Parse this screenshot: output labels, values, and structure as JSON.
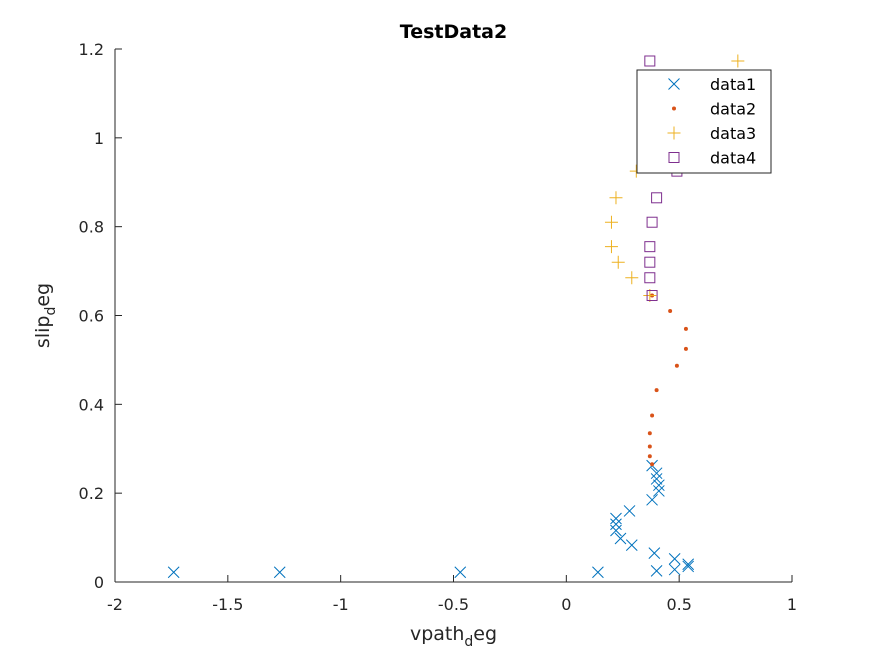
{
  "chart_data": {
    "type": "scatter",
    "title": "TestData2",
    "xlabel": {
      "main": "vpath",
      "sub": "d",
      "rest": "eg"
    },
    "ylabel": {
      "main": "slip",
      "sub": "d",
      "rest": "eg"
    },
    "xlim": [
      -2,
      1
    ],
    "ylim": [
      0,
      1.2
    ],
    "xticks": [
      -2,
      -1.5,
      -1,
      -0.5,
      0,
      0.5,
      1
    ],
    "yticks": [
      0,
      0.2,
      0.4,
      0.6,
      0.8,
      1,
      1.2
    ],
    "xtick_labels": [
      "-2",
      "-1.5",
      "-1",
      "-0.5",
      "0",
      "0.5",
      "1"
    ],
    "ytick_labels": [
      "0",
      "0.2",
      "0.4",
      "0.6",
      "0.8",
      "1",
      "1.2"
    ],
    "grid": false,
    "legend_position": "top-right",
    "series": [
      {
        "name": "data1",
        "marker": "x",
        "color": "#0072BD",
        "points": [
          [
            -1.74,
            0.022
          ],
          [
            -1.27,
            0.022
          ],
          [
            -0.47,
            0.022
          ],
          [
            0.14,
            0.022
          ],
          [
            0.4,
            0.025
          ],
          [
            0.48,
            0.028
          ],
          [
            0.54,
            0.035
          ],
          [
            0.54,
            0.04
          ],
          [
            0.48,
            0.052
          ],
          [
            0.39,
            0.065
          ],
          [
            0.29,
            0.083
          ],
          [
            0.24,
            0.098
          ],
          [
            0.22,
            0.116
          ],
          [
            0.22,
            0.13
          ],
          [
            0.22,
            0.143
          ],
          [
            0.28,
            0.16
          ],
          [
            0.38,
            0.185
          ],
          [
            0.41,
            0.205
          ],
          [
            0.41,
            0.218
          ],
          [
            0.4,
            0.232
          ],
          [
            0.4,
            0.245
          ],
          [
            0.38,
            0.262
          ]
        ]
      },
      {
        "name": "data2",
        "marker": "dot",
        "color": "#D95319",
        "points": [
          [
            0.38,
            0.265
          ],
          [
            0.37,
            0.283
          ],
          [
            0.37,
            0.305
          ],
          [
            0.37,
            0.335
          ],
          [
            0.38,
            0.375
          ],
          [
            0.4,
            0.432
          ],
          [
            0.49,
            0.487
          ],
          [
            0.53,
            0.525
          ],
          [
            0.53,
            0.57
          ],
          [
            0.46,
            0.61
          ],
          [
            0.38,
            0.645
          ]
        ]
      },
      {
        "name": "data3",
        "marker": "plus",
        "color": "#EDB120",
        "points": [
          [
            0.37,
            0.645
          ],
          [
            0.29,
            0.685
          ],
          [
            0.23,
            0.72
          ],
          [
            0.2,
            0.755
          ],
          [
            0.2,
            0.81
          ],
          [
            0.22,
            0.865
          ],
          [
            0.31,
            0.925
          ],
          [
            0.76,
            1.173
          ]
        ]
      },
      {
        "name": "data4",
        "marker": "square",
        "color": "#7E2F8E",
        "points": [
          [
            0.38,
            0.645
          ],
          [
            0.37,
            0.685
          ],
          [
            0.37,
            0.72
          ],
          [
            0.37,
            0.755
          ],
          [
            0.38,
            0.81
          ],
          [
            0.4,
            0.865
          ],
          [
            0.49,
            0.925
          ],
          [
            0.37,
            1.173
          ]
        ]
      }
    ]
  }
}
